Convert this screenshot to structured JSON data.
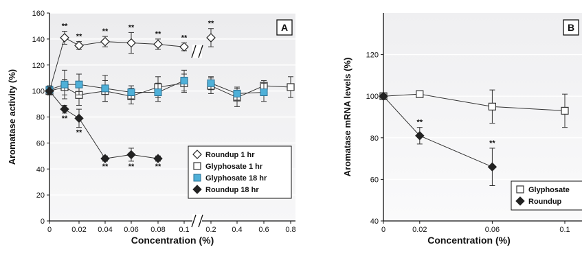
{
  "chart_data": [
    {
      "panel": "A",
      "type": "line",
      "ylabel": "Aromatase activity (%)",
      "xlabel": "Concentration (%)",
      "ylim": [
        0,
        160
      ],
      "y_ticks": [
        "0",
        "20",
        "40",
        "60",
        "80",
        "100",
        "120",
        "140",
        "160"
      ],
      "x_ticks": [
        "0",
        "0.02",
        "0.04",
        "0.06",
        "0.08",
        "0.1",
        "0.2",
        "0.4",
        "0.6",
        "0.8"
      ],
      "x_axis_break": "between 0.1 and 0.2",
      "grid": "horizontal",
      "legend_position": "bottom-right",
      "significance_marker": "**",
      "series": [
        {
          "name": "Roundup 1 hr",
          "marker": "open-diamond",
          "x": [
            "0",
            "0.01",
            "0.02",
            "0.04",
            "0.06",
            "0.08",
            "0.1",
            "0.2"
          ],
          "values": [
            100,
            141,
            135,
            138,
            137,
            136,
            134,
            141
          ],
          "errors": [
            3,
            5,
            3,
            4,
            8,
            4,
            3,
            7
          ],
          "significant": [
            "0.01",
            "0.02",
            "0.04",
            "0.06",
            "0.08",
            "0.1",
            "0.2"
          ]
        },
        {
          "name": "Glyphosate 1 hr",
          "marker": "open-square",
          "x": [
            "0",
            "0.01",
            "0.02",
            "0.04",
            "0.06",
            "0.08",
            "0.1",
            "0.2",
            "0.4",
            "0.6",
            "0.8"
          ],
          "values": [
            100,
            103,
            97,
            100,
            96,
            103,
            106,
            104,
            95,
            104,
            103
          ],
          "errors": [
            3,
            6,
            8,
            8,
            6,
            8,
            7,
            6,
            7,
            4,
            8
          ],
          "significant": []
        },
        {
          "name": "Glyphosate 18 hr",
          "marker": "filled-square-blue",
          "x": [
            "0",
            "0.01",
            "0.02",
            "0.04",
            "0.06",
            "0.08",
            "0.1",
            "0.2",
            "0.4",
            "0.6"
          ],
          "values": [
            101,
            105,
            105,
            102,
            99,
            99,
            108,
            106,
            98,
            99
          ],
          "errors": [
            3,
            11,
            8,
            10,
            5,
            7,
            8,
            5,
            5,
            7
          ],
          "significant": []
        },
        {
          "name": "Roundup 18 hr",
          "marker": "filled-diamond",
          "x": [
            "0",
            "0.01",
            "0.02",
            "0.04",
            "0.06",
            "0.08"
          ],
          "values": [
            100,
            86,
            79,
            48,
            51,
            48
          ],
          "errors": [
            3,
            3,
            7,
            2,
            5,
            2
          ],
          "significant": [
            "0.01",
            "0.02",
            "0.04",
            "0.06",
            "0.08"
          ]
        }
      ]
    },
    {
      "panel": "B",
      "type": "line",
      "ylabel": "Aromatase mRNA levels (%)",
      "xlabel": "Concentration (%)",
      "ylim": [
        40,
        140
      ],
      "y_ticks": [
        "40",
        "60",
        "80",
        "100",
        "120"
      ],
      "x_ticks": [
        "0",
        "0.02",
        "0.06",
        "0.1"
      ],
      "grid": "horizontal",
      "legend_position": "bottom-right",
      "significance_marker": "**",
      "series": [
        {
          "name": "Glyphosate",
          "marker": "open-square",
          "x": [
            0,
            0.02,
            0.06,
            0.1
          ],
          "values": [
            100,
            101,
            95,
            93
          ],
          "errors": [
            1,
            1,
            8,
            8
          ],
          "significant": []
        },
        {
          "name": "Roundup",
          "marker": "filled-diamond",
          "x": [
            0,
            0.02,
            0.06
          ],
          "values": [
            100,
            81,
            66
          ],
          "errors": [
            1,
            4,
            9
          ],
          "significant": [
            0.02,
            0.06
          ]
        }
      ]
    }
  ]
}
